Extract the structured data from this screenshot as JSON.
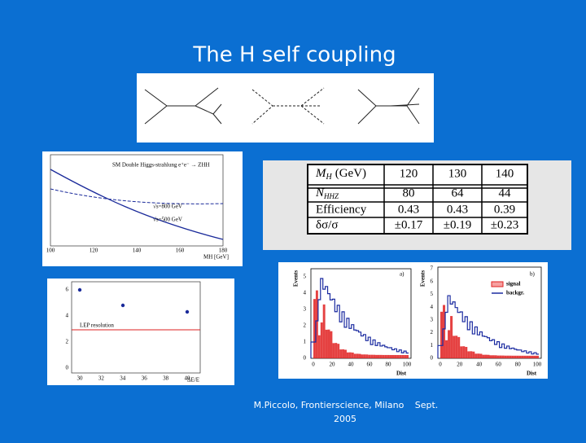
{
  "title": "The H self coupling",
  "footer": {
    "author": "M.Piccolo, Frontierscience, Milano",
    "month": "Sept.",
    "year": "2005"
  },
  "table": {
    "header": {
      "symbol": "M",
      "subscript": "H",
      "unit": "(GeV)",
      "cols": [
        "120",
        "130",
        "140"
      ]
    },
    "rows": [
      {
        "symbol": "N",
        "subscript": "HHZ",
        "cells": [
          "80",
          "64",
          "44"
        ]
      },
      {
        "label": "Efficiency",
        "cells": [
          "0.43",
          "0.43",
          "0.39"
        ]
      },
      {
        "label": "δσ/σ",
        "cells": [
          "±0.17",
          "±0.19",
          "±0.23"
        ]
      }
    ]
  },
  "xsec_plot": {
    "title": "SM Double Higgs-strahlung e⁺e⁻ → ZHH",
    "curves": [
      "√s=800 GeV",
      "√s=500 GeV"
    ],
    "x_label": "MH [GeV]",
    "xticks": [
      "100",
      "120",
      "140",
      "160",
      "180"
    ]
  },
  "resolution_plot": {
    "line_label": "LEP resolution",
    "x_label": "ΔE/E",
    "xticks": [
      "30",
      "32",
      "34",
      "36",
      "38",
      "40"
    ],
    "yticks": [
      "0",
      "2",
      "4",
      "6"
    ]
  },
  "histograms": [
    {
      "label": "a)",
      "y_label": "Events",
      "x_label": "Dist",
      "yticks": [
        "0",
        "1",
        "2",
        "3",
        "4",
        "5"
      ],
      "xticks": [
        "0",
        "20",
        "40",
        "60",
        "80",
        "100"
      ]
    },
    {
      "label": "b)",
      "y_label": "Events",
      "x_label": "Dist",
      "yticks": [
        "0",
        "1",
        "2",
        "3",
        "4",
        "5",
        "6",
        "7"
      ],
      "xticks": [
        "0",
        "20",
        "40",
        "60",
        "80",
        "100"
      ],
      "legend": [
        "signal",
        "backgr."
      ]
    }
  ]
}
